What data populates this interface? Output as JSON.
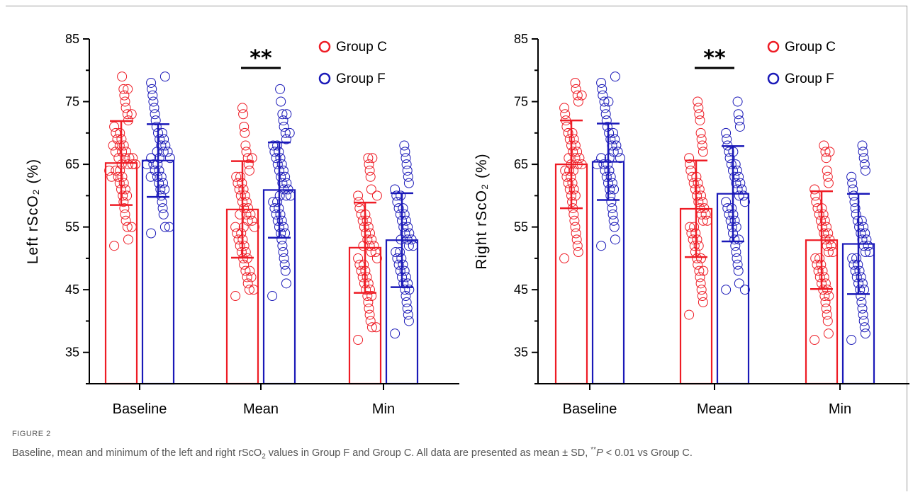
{
  "colors": {
    "group_c": "#ee1c25",
    "group_f": "#1a19b8",
    "axis": "#000000"
  },
  "figure": {
    "label": "FIGURE 2",
    "caption": "Baseline, mean and minimum of the left and right rScO₂ values in Group F and Group C. All data are presented as mean ± SD, **P < 0.01 vs Group C."
  },
  "chart_data": [
    {
      "type": "bar",
      "ylabel": "Left rScO₂ (%)",
      "ylim": [
        30,
        85
      ],
      "yticks": [
        35,
        45,
        55,
        65,
        75,
        85
      ],
      "categories": [
        "Baseline",
        "Mean",
        "Min"
      ],
      "legend": {
        "placement": "top-right",
        "entries": [
          "Group C",
          "Group F"
        ]
      },
      "significance": [
        {
          "category": "Mean",
          "label": "**"
        }
      ],
      "series": [
        {
          "name": "Group C",
          "values": [
            65.2,
            57.8,
            51.7
          ],
          "sd": [
            6.7,
            7.7,
            7.2
          ],
          "points": [
            [
              52,
              53,
              55,
              55,
              56,
              57,
              58,
              59,
              60,
              60,
              61,
              61,
              62,
              62,
              63,
              63,
              63,
              64,
              64,
              64,
              65,
              65,
              65,
              65,
              66,
              66,
              66,
              66,
              67,
              67,
              67,
              68,
              68,
              68,
              69,
              69,
              70,
              70,
              71,
              72,
              73,
              73,
              74,
              75,
              76,
              77,
              77,
              79
            ],
            [
              44,
              45,
              45,
              46,
              47,
              47,
              48,
              48,
              49,
              50,
              50,
              51,
              51,
              52,
              52,
              53,
              53,
              54,
              54,
              55,
              55,
              55,
              56,
              56,
              57,
              57,
              57,
              58,
              58,
              59,
              59,
              60,
              60,
              61,
              61,
              62,
              62,
              63,
              63,
              64,
              65,
              66,
              66,
              67,
              68,
              70,
              71,
              73,
              74
            ],
            [
              37,
              39,
              39,
              40,
              41,
              42,
              43,
              44,
              44,
              45,
              45,
              46,
              46,
              47,
              47,
              48,
              48,
              49,
              49,
              50,
              50,
              51,
              51,
              52,
              52,
              52,
              53,
              53,
              54,
              54,
              55,
              55,
              56,
              56,
              57,
              57,
              58,
              59,
              60,
              60,
              61,
              63,
              64,
              65,
              66,
              66
            ]
          ]
        },
        {
          "name": "Group F",
          "values": [
            65.6,
            60.9,
            52.9
          ],
          "sd": [
            5.8,
            7.6,
            7.5
          ],
          "points": [
            [
              54,
              55,
              55,
              57,
              58,
              59,
              60,
              61,
              61,
              62,
              62,
              63,
              63,
              63,
              64,
              64,
              65,
              65,
              65,
              66,
              66,
              66,
              67,
              67,
              67,
              68,
              68,
              69,
              69,
              70,
              70,
              71,
              72,
              73,
              74,
              75,
              76,
              77,
              78,
              79
            ],
            [
              44,
              46,
              48,
              49,
              50,
              51,
              52,
              53,
              54,
              54,
              55,
              55,
              56,
              56,
              57,
              57,
              58,
              58,
              59,
              59,
              60,
              60,
              60,
              61,
              61,
              62,
              62,
              63,
              63,
              64,
              64,
              65,
              65,
              66,
              66,
              67,
              67,
              68,
              68,
              69,
              70,
              70,
              71,
              72,
              73,
              73,
              75,
              77
            ],
            [
              38,
              40,
              41,
              42,
              43,
              44,
              45,
              45,
              46,
              46,
              47,
              47,
              48,
              48,
              49,
              49,
              50,
              50,
              51,
              51,
              52,
              52,
              53,
              53,
              53,
              54,
              54,
              55,
              55,
              56,
              56,
              57,
              57,
              58,
              58,
              59,
              60,
              60,
              61,
              62,
              63,
              64,
              65,
              66,
              67,
              68
            ]
          ]
        }
      ]
    },
    {
      "type": "bar",
      "ylabel": "Right rScO₂ (%)",
      "ylim": [
        30,
        85
      ],
      "yticks": [
        35,
        45,
        55,
        65,
        75,
        85
      ],
      "categories": [
        "Baseline",
        "Mean",
        "Min"
      ],
      "legend": {
        "placement": "top-right",
        "entries": [
          "Group C",
          "Group F"
        ]
      },
      "significance": [
        {
          "category": "Mean",
          "label": "**"
        }
      ],
      "series": [
        {
          "name": "Group C",
          "values": [
            65.0,
            57.9,
            52.9
          ],
          "sd": [
            7.0,
            7.7,
            7.8
          ],
          "points": [
            [
              50,
              51,
              52,
              53,
              54,
              55,
              56,
              57,
              58,
              59,
              60,
              60,
              61,
              61,
              62,
              62,
              63,
              63,
              64,
              64,
              64,
              65,
              65,
              65,
              66,
              66,
              66,
              67,
              67,
              68,
              68,
              69,
              69,
              70,
              70,
              71,
              72,
              73,
              74,
              75,
              76,
              76,
              77,
              78
            ],
            [
              41,
              43,
              44,
              45,
              46,
              47,
              48,
              48,
              49,
              50,
              50,
              51,
              52,
              52,
              53,
              53,
              54,
              54,
              55,
              55,
              56,
              56,
              57,
              57,
              58,
              58,
              59,
              59,
              60,
              60,
              61,
              61,
              62,
              62,
              63,
              63,
              64,
              65,
              66,
              67,
              68,
              69,
              70,
              72,
              73,
              74,
              75
            ],
            [
              37,
              38,
              40,
              41,
              42,
              43,
              44,
              44,
              45,
              45,
              46,
              46,
              47,
              47,
              48,
              48,
              49,
              49,
              50,
              50,
              51,
              51,
              52,
              52,
              53,
              53,
              54,
              54,
              55,
              55,
              56,
              56,
              57,
              57,
              58,
              58,
              59,
              60,
              61,
              62,
              63,
              64,
              66,
              67,
              67,
              68
            ]
          ]
        },
        {
          "name": "Group F",
          "values": [
            65.4,
            60.3,
            52.3
          ],
          "sd": [
            6.1,
            7.6,
            8.0
          ],
          "points": [
            [
              52,
              53,
              55,
              56,
              57,
              58,
              59,
              60,
              61,
              61,
              62,
              62,
              63,
              63,
              64,
              64,
              65,
              65,
              65,
              66,
              66,
              66,
              67,
              67,
              68,
              68,
              69,
              69,
              70,
              70,
              71,
              72,
              73,
              74,
              75,
              75,
              76,
              77,
              78,
              79
            ],
            [
              45,
              45,
              46,
              48,
              49,
              50,
              51,
              52,
              53,
              53,
              54,
              55,
              55,
              56,
              56,
              57,
              57,
              58,
              58,
              59,
              59,
              60,
              60,
              61,
              61,
              62,
              62,
              63,
              63,
              64,
              64,
              65,
              65,
              66,
              67,
              67,
              68,
              69,
              70,
              71,
              72,
              73,
              75
            ],
            [
              37,
              38,
              39,
              40,
              41,
              42,
              43,
              44,
              45,
              45,
              46,
              46,
              47,
              47,
              48,
              48,
              49,
              49,
              50,
              50,
              51,
              51,
              52,
              52,
              53,
              53,
              54,
              54,
              55,
              55,
              56,
              56,
              57,
              58,
              59,
              60,
              61,
              62,
              63,
              64,
              65,
              66,
              67,
              68
            ]
          ]
        }
      ]
    }
  ]
}
